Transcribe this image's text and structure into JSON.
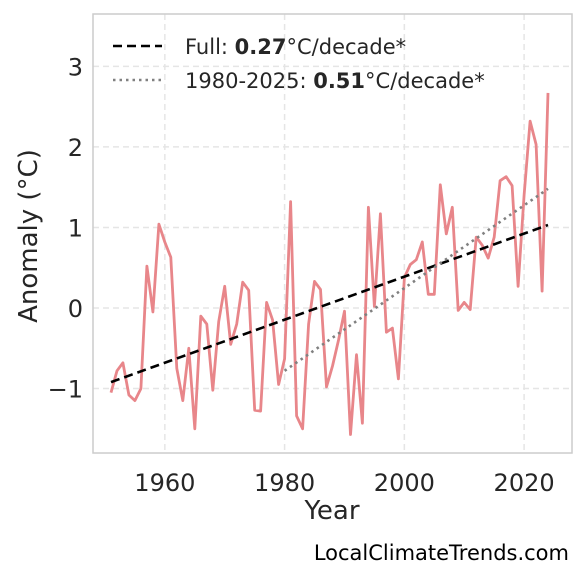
{
  "chart_data": {
    "type": "line",
    "xlabel": "Year",
    "ylabel": "Anomaly (°C)",
    "xlim": [
      1948,
      2028
    ],
    "ylim": [
      -1.8,
      3.65
    ],
    "xticks": [
      1960,
      1980,
      2000,
      2020
    ],
    "xtick_labels": [
      "1960",
      "1980",
      "2000",
      "2020"
    ],
    "yticks": [
      -1,
      0,
      1,
      2,
      3
    ],
    "ytick_labels": [
      "−1",
      "0",
      "1",
      "2",
      "3"
    ],
    "grid": true,
    "legend_position": "top-left",
    "colors": {
      "anomaly": "#e8868a",
      "trend_full": "#000000",
      "trend_recent": "#808080",
      "grid": "#e5e5e5",
      "frame": "#cccccc",
      "text": "#262626"
    },
    "series": [
      {
        "x": [
          1951,
          1952,
          1953,
          1954,
          1955,
          1956,
          1957,
          1958,
          1959,
          1960,
          1961,
          1962,
          1963,
          1964,
          1965,
          1966,
          1967,
          1968,
          1969,
          1970,
          1971,
          1972,
          1973,
          1974,
          1975,
          1976,
          1977,
          1978,
          1979,
          1980,
          1981,
          1982,
          1983,
          1984,
          1985,
          1986,
          1987,
          1988,
          1989,
          1990,
          1991,
          1992,
          1993,
          1994,
          1995,
          1996,
          1997,
          1998,
          1999,
          2000,
          2001,
          2002,
          2003,
          2004,
          2005,
          2006,
          2007,
          2008,
          2009,
          2010,
          2011,
          2012,
          2013,
          2014,
          2015,
          2016,
          2017,
          2018,
          2019,
          2020,
          2021,
          2022,
          2023,
          2024
        ],
        "values": [
          -1.05,
          -0.78,
          -0.68,
          -1.08,
          -1.15,
          -1.0,
          0.52,
          -0.05,
          1.04,
          0.82,
          0.63,
          -0.75,
          -1.15,
          -0.5,
          -1.5,
          -0.1,
          -0.2,
          -1.02,
          -0.17,
          0.27,
          -0.45,
          -0.2,
          0.32,
          0.22,
          -1.27,
          -1.28,
          0.07,
          -0.15,
          -0.95,
          -0.63,
          1.32,
          -1.34,
          -1.5,
          -0.2,
          0.33,
          0.23,
          -0.98,
          -0.72,
          -0.4,
          -0.04,
          -1.57,
          -0.58,
          -1.43,
          1.25,
          0.02,
          1.17,
          -0.3,
          -0.25,
          -0.88,
          0.38,
          0.54,
          0.6,
          0.82,
          0.17,
          0.17,
          1.53,
          0.92,
          1.25,
          -0.03,
          0.07,
          -0.02,
          0.88,
          0.78,
          0.62,
          0.88,
          1.58,
          1.63,
          1.52,
          0.27,
          1.4,
          2.32,
          2.03,
          0.21,
          2.67
        ]
      },
      {
        "name": "Full",
        "style": "dashed",
        "x": [
          1951,
          2024
        ],
        "values": [
          -0.92,
          1.03
        ]
      },
      {
        "name": "1980-2025",
        "style": "dotted",
        "x": [
          1980,
          2024
        ],
        "values": [
          -0.78,
          1.48
        ]
      }
    ],
    "legend": [
      {
        "prefix": "Full: ",
        "value": "0.27",
        "suffix": "°C/decade*"
      },
      {
        "prefix": "1980-2025: ",
        "value": "0.51",
        "suffix": "°C/decade*"
      }
    ]
  },
  "watermark": "LocalClimateTrends.com"
}
